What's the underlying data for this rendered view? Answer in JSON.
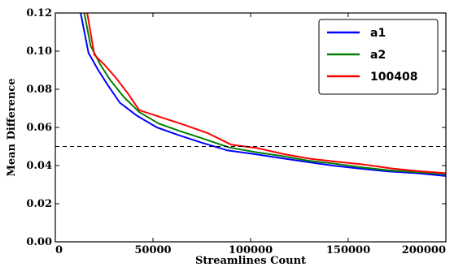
{
  "chart_data": {
    "type": "line",
    "title": "",
    "xlabel": "Streamlines Count",
    "ylabel": "Mean Difference",
    "xlim": [
      0,
      200000
    ],
    "ylim": [
      0.0,
      0.12
    ],
    "xticks": [
      0,
      50000,
      100000,
      150000,
      200000
    ],
    "xtick_labels": [
      "0",
      "50000",
      "100000",
      "150000",
      "200000"
    ],
    "yticks": [
      0.0,
      0.02,
      0.04,
      0.06,
      0.08,
      0.1,
      0.12
    ],
    "ytick_labels": [
      "0.00",
      "0.02",
      "0.04",
      "0.06",
      "0.08",
      "0.10",
      "0.12"
    ],
    "grid": false,
    "legend_position": "top-right",
    "reference_line": {
      "y": 0.05,
      "style": "dashed",
      "color": "#000000"
    },
    "series": [
      {
        "name": "a1",
        "color": "#0000ff",
        "x": [
          8000,
          12000,
          17000,
          22000,
          27000,
          33000,
          42000,
          52000,
          63000,
          75000,
          88000,
          102000,
          115000,
          128000,
          142000,
          155000,
          170000,
          185000,
          200000
        ],
        "y": [
          0.17,
          0.125,
          0.099,
          0.09,
          0.082,
          0.073,
          0.066,
          0.06,
          0.056,
          0.052,
          0.048,
          0.046,
          0.044,
          0.042,
          0.04,
          0.0385,
          0.037,
          0.036,
          0.0345
        ]
      },
      {
        "name": "a2",
        "color": "#008000",
        "x": [
          9000,
          13000,
          18000,
          23000,
          28000,
          35000,
          43000,
          53000,
          64000,
          76000,
          89000,
          103000,
          116000,
          130000,
          143000,
          157000,
          171000,
          186000,
          200000
        ],
        "y": [
          0.17,
          0.13,
          0.103,
          0.093,
          0.085,
          0.076,
          0.068,
          0.062,
          0.058,
          0.054,
          0.0495,
          0.047,
          0.045,
          0.0425,
          0.041,
          0.039,
          0.0375,
          0.0365,
          0.0355
        ]
      },
      {
        "name": "100408",
        "color": "#ff0000",
        "x": [
          11000,
          15000,
          20000,
          25000,
          31000,
          37000,
          43000,
          55000,
          67000,
          78000,
          90000,
          104000,
          117000,
          131000,
          144000,
          158000,
          172000,
          187000,
          200000
        ],
        "y": [
          0.17,
          0.128,
          0.098,
          0.093,
          0.086,
          0.078,
          0.069,
          0.065,
          0.061,
          0.057,
          0.051,
          0.049,
          0.046,
          0.0435,
          0.042,
          0.0405,
          0.0385,
          0.037,
          0.036
        ]
      }
    ]
  }
}
